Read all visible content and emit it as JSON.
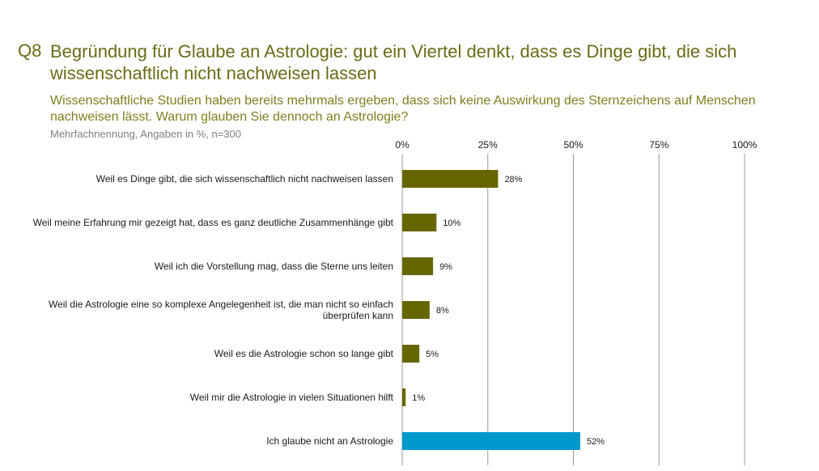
{
  "slide": {
    "question_number": "Q8",
    "title": "Begründung für Glaube an Astrologie: gut ein Viertel denkt, dass es Dinge gibt, die sich wissenschaftlich nicht nachweisen lassen",
    "subtitle": "Wissenschaftliche Studien haben bereits mehrmals ergeben, dass sich keine Auswirkung des Sternzeichens auf Menschen nachweisen lässt. Warum glauben Sie dennoch an Astrologie?",
    "note": "Mehrfachnennung, Angaben in %, n=300"
  },
  "chart_data": {
    "type": "bar",
    "orientation": "horizontal",
    "categories": [
      "Weil es Dinge gibt, die sich wissenschaftlich nicht nachweisen lassen",
      "Weil meine Erfahrung mir gezeigt hat, dass es ganz deutliche Zusammenhänge gibt",
      "Weil ich die Vorstellung mag, dass die Sterne uns leiten",
      "Weil die Astrologie eine so komplexe Angelegenheit ist, die man nicht so einfach überprüfen kann",
      "Weil es die Astrologie schon so lange gibt",
      "Weil mir die Astrologie in vielen Situationen hilft",
      "Ich glaube nicht an Astrologie"
    ],
    "values": [
      28,
      10,
      9,
      8,
      5,
      1,
      52
    ],
    "value_labels": [
      "28%",
      "10%",
      "9%",
      "8%",
      "5%",
      "1%",
      "52%"
    ],
    "bar_colors": [
      "#666600",
      "#666600",
      "#666600",
      "#666600",
      "#666600",
      "#666600",
      "#0099cc"
    ],
    "xlim": [
      0,
      100
    ],
    "ticks": [
      0,
      25,
      50,
      75,
      100
    ],
    "tick_labels": [
      "0%",
      "25%",
      "50%",
      "75%",
      "100%"
    ],
    "axis_position": "top",
    "grid": true,
    "gridline_color": "#999999"
  }
}
